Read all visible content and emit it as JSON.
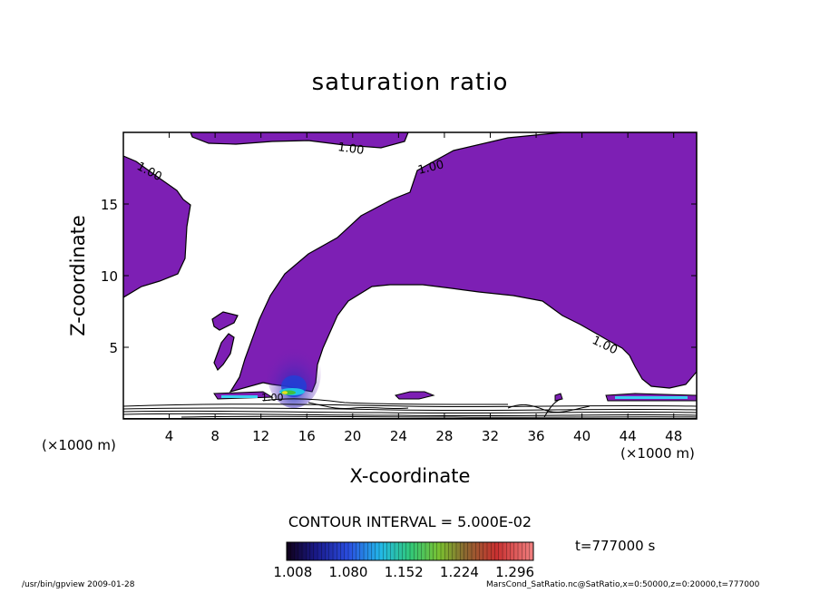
{
  "chart_data": {
    "type": "heatmap",
    "title": "saturation ratio",
    "xlabel": "X-coordinate",
    "ylabel": "Z-coordinate",
    "x_unit": "(×1000 m)",
    "xlim": [
      0,
      50
    ],
    "ylim": [
      0,
      20
    ],
    "x_ticks": [
      "4",
      "8",
      "12",
      "16",
      "20",
      "24",
      "28",
      "32",
      "36",
      "40",
      "44",
      "48"
    ],
    "y_ticks": [
      "5",
      "10",
      "15"
    ],
    "contour_labels": [
      "1.00",
      "1.00",
      "1.00",
      "1.00",
      "1.00"
    ],
    "contour_interval": "CONTOUR INTERVAL = 5.000E-02",
    "colorbar_labels": [
      "1.008",
      "1.080",
      "1.152",
      "1.224",
      "1.296"
    ],
    "colorbar_range": [
      1.0,
      1.32
    ],
    "colors": {
      "supersaturated": "#7d1fb4",
      "frame": "#000000"
    },
    "time_label": "t=777000 s"
  },
  "footer": {
    "left": "/usr/bin/gpview  2009-01-28",
    "right": "MarsCond_SatRatio.nc@SatRatio,x=0:50000,z=0:20000,t=777000"
  }
}
